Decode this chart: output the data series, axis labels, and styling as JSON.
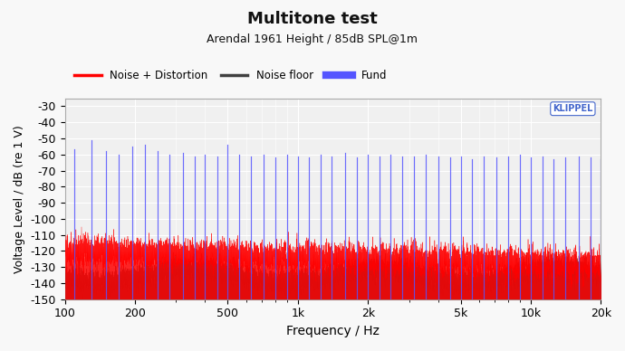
{
  "title": "Multitone test",
  "subtitle": "Arendal 1961 Height / 85dB SPL@1m",
  "xlabel": "Frequency / Hz",
  "ylabel": "Voltage Level / dB (re 1 V)",
  "xlim": [
    100,
    20000
  ],
  "ylim": [
    -150,
    -25
  ],
  "yticks": [
    -30,
    -40,
    -50,
    -60,
    -70,
    -80,
    -90,
    -100,
    -110,
    -120,
    -130,
    -140,
    -150
  ],
  "xtick_labels": [
    "100",
    "200",
    "500",
    "1k",
    "2k",
    "5k",
    "10k",
    "20k"
  ],
  "xtick_values": [
    100,
    200,
    500,
    1000,
    2000,
    5000,
    10000,
    20000
  ],
  "bg_color": "#f0f0f0",
  "grid_color": "#ffffff",
  "color_noise_distortion": "#ff0000",
  "color_noise_floor": "#404040",
  "color_fund": "#5555ff",
  "legend_labels": [
    "Noise + Distortion",
    "Noise floor",
    "Fund"
  ],
  "klippel_color": "#4466cc",
  "fund_freqs": [
    110,
    130,
    150,
    170,
    195,
    220,
    250,
    280,
    320,
    360,
    400,
    450,
    500,
    560,
    630,
    710,
    800,
    900,
    1000,
    1120,
    1250,
    1400,
    1600,
    1800,
    2000,
    2240,
    2500,
    2800,
    3150,
    3550,
    4000,
    4500,
    5000,
    5600,
    6300,
    7100,
    8000,
    9000,
    10000,
    11200,
    12500,
    14000,
    16000,
    18000,
    20000
  ],
  "fund_levels": [
    -57,
    -51,
    -58,
    -60,
    -55,
    -54,
    -58,
    -60,
    -59,
    -61,
    -60,
    -61,
    -54,
    -60,
    -61,
    -60,
    -62,
    -60,
    -61,
    -62,
    -60,
    -61,
    -59,
    -62,
    -60,
    -61,
    -60,
    -61,
    -61,
    -60,
    -61,
    -62,
    -61,
    -63,
    -61,
    -62,
    -61,
    -60,
    -62,
    -61,
    -63,
    -62,
    -61,
    -62,
    -63
  ],
  "noise_nd_base": -120,
  "noise_floor_base": -135,
  "n_points": 8000
}
